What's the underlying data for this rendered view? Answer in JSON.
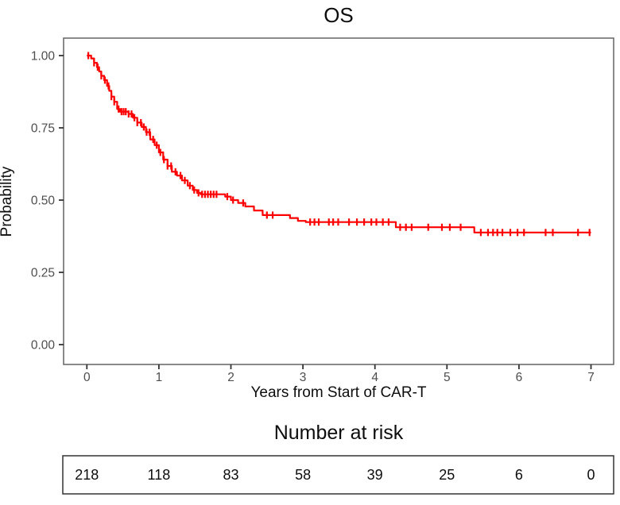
{
  "chart_data": {
    "type": "line",
    "subtype": "kaplan-meier-step",
    "title": "OS",
    "xlabel": "Years from Start of CAR-T",
    "ylabel": "Probability",
    "xlim": [
      0,
      7
    ],
    "ylim": [
      0.0,
      1.0
    ],
    "x_ticks": [
      0,
      1,
      2,
      3,
      4,
      5,
      6,
      7
    ],
    "y_ticks": [
      0.0,
      0.25,
      0.5,
      0.75,
      1.0
    ],
    "y_tick_labels": [
      "0.00",
      "0.25",
      "0.50",
      "0.75",
      "1.00"
    ],
    "grid": "off",
    "legend_position": "none",
    "curve_color": "#ff0000",
    "axis_color": "#595959",
    "tick_label_color": "#4d4d4d",
    "series_name": "OS",
    "steps": [
      [
        0.0,
        1.0
      ],
      [
        0.06,
        0.99
      ],
      [
        0.1,
        0.975
      ],
      [
        0.14,
        0.96
      ],
      [
        0.17,
        0.945
      ],
      [
        0.2,
        0.93
      ],
      [
        0.24,
        0.915
      ],
      [
        0.28,
        0.895
      ],
      [
        0.31,
        0.878
      ],
      [
        0.34,
        0.858
      ],
      [
        0.38,
        0.84
      ],
      [
        0.42,
        0.815
      ],
      [
        0.46,
        0.806
      ],
      [
        0.58,
        0.798
      ],
      [
        0.64,
        0.785
      ],
      [
        0.7,
        0.768
      ],
      [
        0.76,
        0.753
      ],
      [
        0.82,
        0.735
      ],
      [
        0.88,
        0.71
      ],
      [
        0.94,
        0.69
      ],
      [
        1.0,
        0.665
      ],
      [
        1.06,
        0.64
      ],
      [
        1.12,
        0.618
      ],
      [
        1.18,
        0.598
      ],
      [
        1.25,
        0.585
      ],
      [
        1.32,
        0.568
      ],
      [
        1.4,
        0.55
      ],
      [
        1.47,
        0.535
      ],
      [
        1.53,
        0.525
      ],
      [
        1.58,
        0.52
      ],
      [
        1.92,
        0.512
      ],
      [
        2.0,
        0.5
      ],
      [
        2.1,
        0.49
      ],
      [
        2.2,
        0.478
      ],
      [
        2.32,
        0.464
      ],
      [
        2.44,
        0.448
      ],
      [
        2.82,
        0.438
      ],
      [
        2.93,
        0.428
      ],
      [
        3.04,
        0.424
      ],
      [
        4.29,
        0.406
      ],
      [
        5.38,
        0.388
      ],
      [
        7.0,
        0.388
      ]
    ],
    "censor_times": [
      0.02,
      0.1,
      0.15,
      0.2,
      0.25,
      0.3,
      0.34,
      0.38,
      0.44,
      0.48,
      0.51,
      0.54,
      0.58,
      0.62,
      0.66,
      0.7,
      0.75,
      0.79,
      0.83,
      0.87,
      0.92,
      0.97,
      1.02,
      1.07,
      1.12,
      1.17,
      1.23,
      1.3,
      1.36,
      1.43,
      1.49,
      1.55,
      1.6,
      1.64,
      1.68,
      1.72,
      1.76,
      1.8,
      1.95,
      2.03,
      2.17,
      2.5,
      2.58,
      3.1,
      3.16,
      3.22,
      3.36,
      3.42,
      3.49,
      3.64,
      3.75,
      3.85,
      3.95,
      4.02,
      4.11,
      4.19,
      4.35,
      4.43,
      4.51,
      4.74,
      4.93,
      5.04,
      5.19,
      5.47,
      5.57,
      5.64,
      5.7,
      5.77,
      5.88,
      5.98,
      6.07,
      6.37,
      6.47,
      6.82,
      6.98
    ]
  },
  "risk_table": {
    "title": "Number at risk",
    "times": [
      0,
      1,
      2,
      3,
      4,
      5,
      6,
      7
    ],
    "counts": [
      218,
      118,
      83,
      58,
      39,
      25,
      6,
      0
    ]
  }
}
